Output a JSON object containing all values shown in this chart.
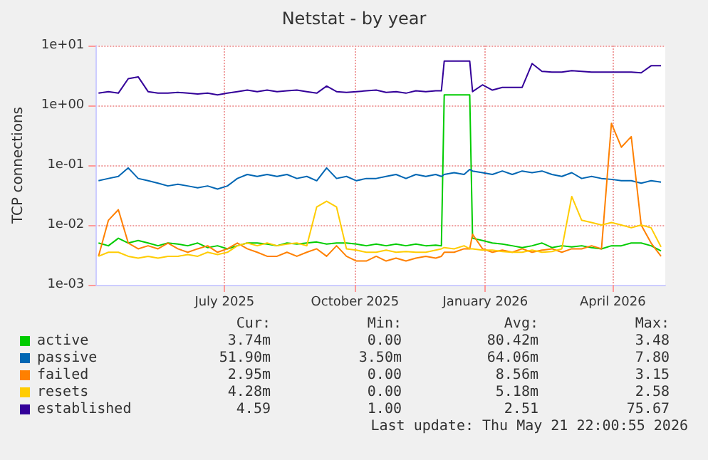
{
  "chart_data": {
    "type": "line",
    "title": "Netstat - by year",
    "ylabel": "TCP connections",
    "log": "y",
    "grid": true,
    "legend": "bottom",
    "marker": "none",
    "line_style": "solid",
    "xlim": [
      "2025-04-01",
      "2026-05-08"
    ],
    "xticks": [
      {
        "value": "2025-07-01",
        "label": "July 2025"
      },
      {
        "value": "2025-10-01",
        "label": "October 2025"
      },
      {
        "value": "2026-01-01",
        "label": "January 2026"
      },
      {
        "value": "2026-04-01",
        "label": "April 2026"
      }
    ],
    "ylim": [
      0.001,
      10
    ],
    "yticks": [
      {
        "value": 0.001,
        "label": "1e-03"
      },
      {
        "value": 0.01,
        "label": "1e-02"
      },
      {
        "value": 0.1,
        "label": "1e-01"
      },
      {
        "value": 1,
        "label": "1e+00"
      },
      {
        "value": 10,
        "label": "1e+01"
      }
    ],
    "x": [
      "2025-04-03",
      "2025-04-10",
      "2025-04-17",
      "2025-04-24",
      "2025-05-01",
      "2025-05-08",
      "2025-05-15",
      "2025-05-22",
      "2025-05-29",
      "2025-06-05",
      "2025-06-12",
      "2025-06-19",
      "2025-06-26",
      "2025-07-03",
      "2025-07-10",
      "2025-07-17",
      "2025-07-24",
      "2025-07-31",
      "2025-08-07",
      "2025-08-14",
      "2025-08-21",
      "2025-08-28",
      "2025-09-04",
      "2025-09-11",
      "2025-09-18",
      "2025-09-25",
      "2025-10-02",
      "2025-10-09",
      "2025-10-16",
      "2025-10-23",
      "2025-10-30",
      "2025-11-06",
      "2025-11-13",
      "2025-11-20",
      "2025-11-27",
      "2025-12-01",
      "2025-12-03",
      "2025-12-10",
      "2025-12-17",
      "2025-12-21",
      "2025-12-23",
      "2025-12-30",
      "2026-01-06",
      "2026-01-13",
      "2026-01-20",
      "2026-01-27",
      "2026-02-03",
      "2026-02-10",
      "2026-02-17",
      "2026-02-24",
      "2026-03-03",
      "2026-03-10",
      "2026-03-17",
      "2026-03-24",
      "2026-03-31",
      "2026-04-07",
      "2026-04-14",
      "2026-04-21",
      "2026-04-28",
      "2026-05-05"
    ],
    "series": [
      {
        "name": "active",
        "color": "#00cc00",
        "values": [
          0.005,
          0.0045,
          0.006,
          0.005,
          0.0055,
          0.005,
          0.0045,
          0.005,
          0.0048,
          0.0045,
          0.005,
          0.0042,
          0.0045,
          0.004,
          0.0045,
          0.005,
          0.005,
          0.0048,
          0.0045,
          0.005,
          0.0048,
          0.005,
          0.0052,
          0.0048,
          0.005,
          0.005,
          0.0048,
          0.0045,
          0.0048,
          0.0045,
          0.0048,
          0.0045,
          0.0048,
          0.0045,
          0.0046,
          0.0045,
          1.5,
          1.5,
          1.5,
          1.5,
          0.006,
          0.0055,
          0.005,
          0.0048,
          0.0045,
          0.0042,
          0.0045,
          0.005,
          0.0042,
          0.0045,
          0.0043,
          0.0045,
          0.0042,
          0.004,
          0.0045,
          0.0045,
          0.005,
          0.005,
          0.0045,
          0.0037
        ]
      },
      {
        "name": "passive",
        "color": "#0066b3",
        "values": [
          0.055,
          0.06,
          0.065,
          0.09,
          0.06,
          0.055,
          0.05,
          0.045,
          0.048,
          0.045,
          0.042,
          0.045,
          0.04,
          0.045,
          0.06,
          0.07,
          0.065,
          0.07,
          0.065,
          0.07,
          0.06,
          0.065,
          0.055,
          0.09,
          0.06,
          0.065,
          0.055,
          0.06,
          0.06,
          0.065,
          0.07,
          0.06,
          0.07,
          0.065,
          0.07,
          0.065,
          0.07,
          0.075,
          0.07,
          0.085,
          0.08,
          0.075,
          0.07,
          0.08,
          0.07,
          0.08,
          0.075,
          0.08,
          0.07,
          0.065,
          0.075,
          0.06,
          0.065,
          0.06,
          0.058,
          0.055,
          0.055,
          0.05,
          0.055,
          0.052
        ]
      },
      {
        "name": "failed",
        "color": "#ff8000",
        "values": [
          0.003,
          0.012,
          0.018,
          0.005,
          0.004,
          0.0045,
          0.004,
          0.005,
          0.004,
          0.0035,
          0.004,
          0.0045,
          0.0035,
          0.004,
          0.005,
          0.004,
          0.0035,
          0.003,
          0.003,
          0.0035,
          0.003,
          0.0035,
          0.004,
          0.003,
          0.0045,
          0.003,
          0.0025,
          0.0025,
          0.003,
          0.0025,
          0.0028,
          0.0025,
          0.0028,
          0.003,
          0.0028,
          0.003,
          0.0035,
          0.0035,
          0.004,
          0.004,
          0.007,
          0.004,
          0.0035,
          0.0038,
          0.0035,
          0.004,
          0.0035,
          0.0038,
          0.004,
          0.0035,
          0.004,
          0.004,
          0.0045,
          0.004,
          0.5,
          0.2,
          0.3,
          0.01,
          0.005,
          0.003
        ]
      },
      {
        "name": "resets",
        "color": "#ffcc00",
        "values": [
          0.003,
          0.0035,
          0.0035,
          0.003,
          0.0028,
          0.003,
          0.0028,
          0.003,
          0.003,
          0.0032,
          0.003,
          0.0035,
          0.0032,
          0.0035,
          0.0045,
          0.005,
          0.0045,
          0.005,
          0.0045,
          0.0048,
          0.005,
          0.0045,
          0.02,
          0.025,
          0.02,
          0.004,
          0.0038,
          0.0035,
          0.0035,
          0.0038,
          0.0035,
          0.0036,
          0.0035,
          0.0035,
          0.0038,
          0.004,
          0.0042,
          0.004,
          0.0045,
          0.004,
          0.004,
          0.0038,
          0.0038,
          0.0036,
          0.0035,
          0.0035,
          0.0038,
          0.0035,
          0.0036,
          0.004,
          0.03,
          0.012,
          0.011,
          0.01,
          0.011,
          0.01,
          0.009,
          0.01,
          0.009,
          0.0043
        ]
      },
      {
        "name": "established",
        "color": "#330099",
        "values": [
          1.6,
          1.7,
          1.6,
          2.8,
          3.0,
          1.7,
          1.6,
          1.6,
          1.65,
          1.6,
          1.55,
          1.6,
          1.5,
          1.6,
          1.7,
          1.8,
          1.7,
          1.8,
          1.7,
          1.75,
          1.8,
          1.7,
          1.6,
          2.1,
          1.7,
          1.65,
          1.7,
          1.75,
          1.8,
          1.65,
          1.7,
          1.6,
          1.75,
          1.7,
          1.75,
          1.75,
          5.5,
          5.5,
          5.5,
          5.5,
          1.7,
          2.2,
          1.8,
          2.0,
          2.0,
          2.0,
          5.0,
          3.7,
          3.6,
          3.6,
          3.8,
          3.7,
          3.6,
          3.6,
          3.6,
          3.6,
          3.6,
          3.5,
          4.6,
          4.6
        ]
      }
    ],
    "annotations": [
      "Cur:",
      "Min:",
      "Avg:",
      "Max:",
      "3.74m",
      "0.00",
      "80.42m",
      "3.48",
      "51.90m",
      "3.50m",
      "64.06m",
      "7.80",
      "2.95m",
      "0.00",
      "8.56m",
      "3.15",
      "4.28m",
      "0.00",
      "5.18m",
      "2.58",
      "4.59",
      "1.00",
      "2.51",
      "75.67",
      "Last update: Thu May 21 22:00:55 2026"
    ]
  }
}
